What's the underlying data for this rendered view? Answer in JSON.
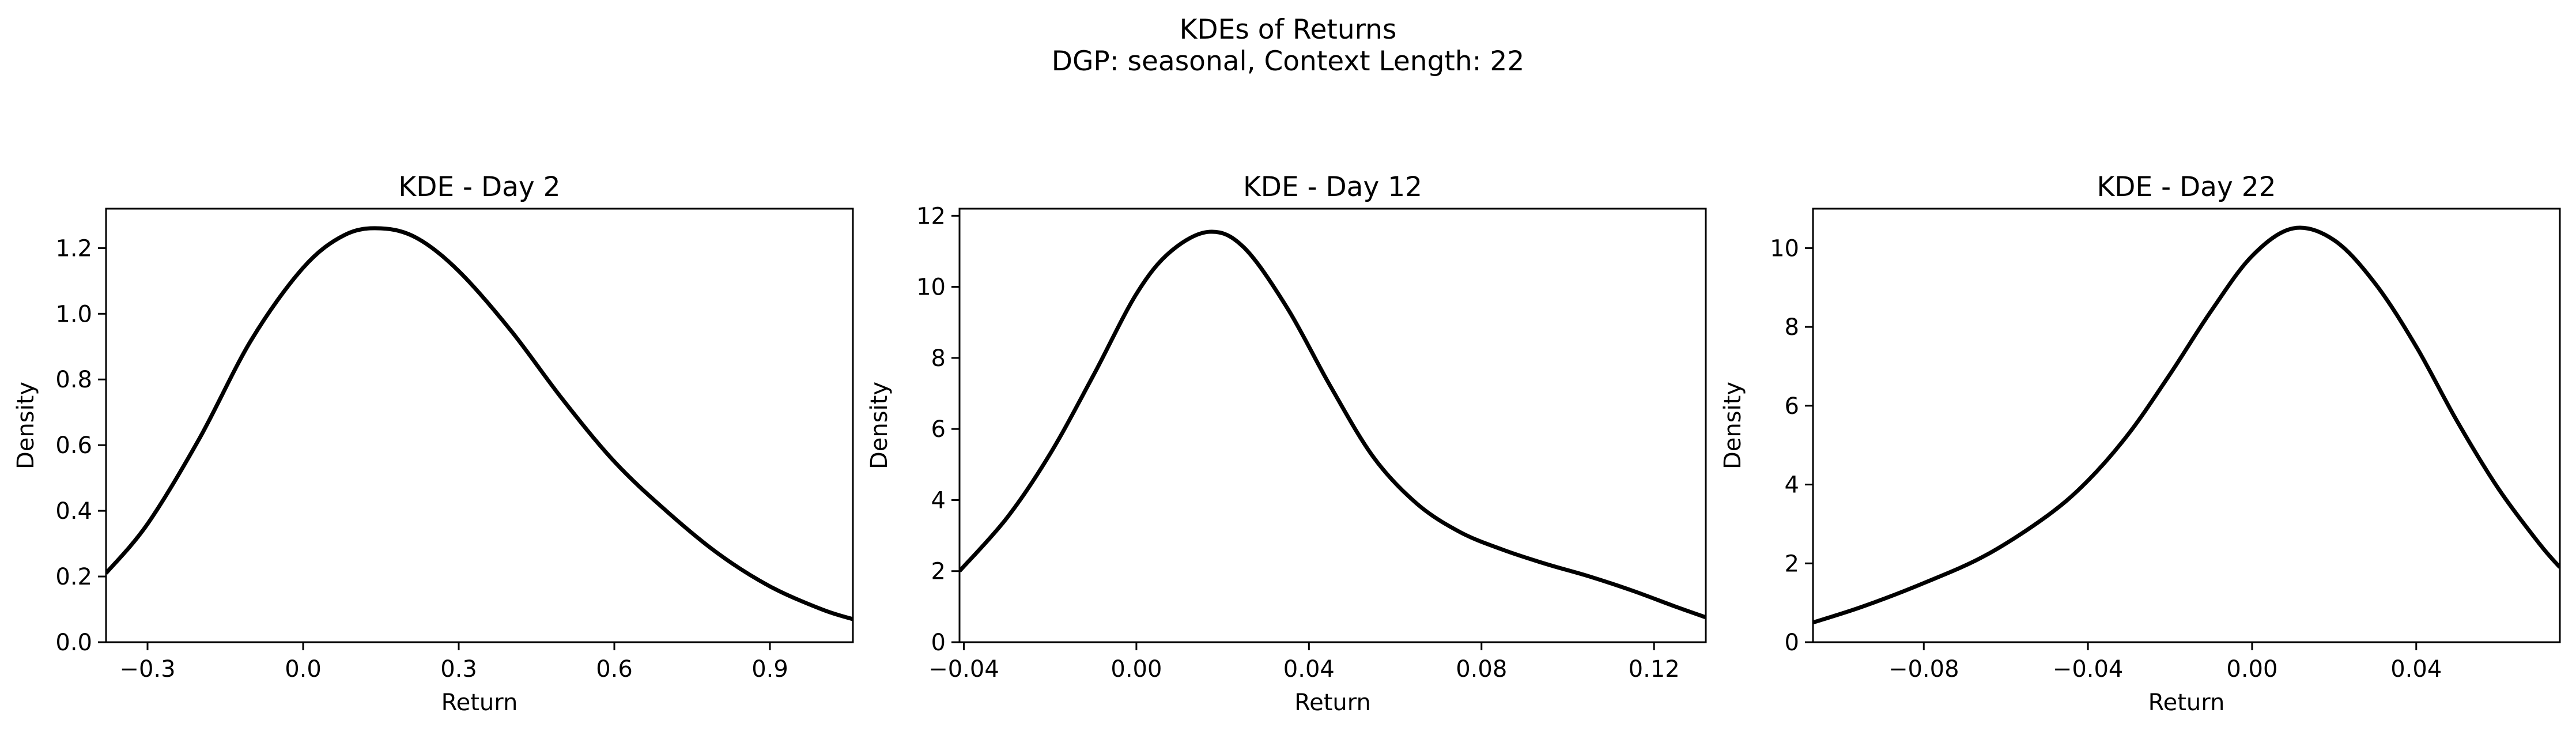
{
  "figure": {
    "title_line1": "KDEs of Returns",
    "title_line2": "DGP: seasonal, Context Length: 22"
  },
  "chart_data": [
    {
      "type": "line",
      "title": "KDE - Day 2",
      "xlabel": "Return",
      "ylabel": "Density",
      "xlim": [
        -0.38,
        1.06
      ],
      "ylim": [
        0.0,
        1.32
      ],
      "xticks": [
        -0.3,
        0.0,
        0.3,
        0.6,
        0.9
      ],
      "xtick_labels": [
        "−0.3",
        "0.0",
        "0.3",
        "0.6",
        "0.9"
      ],
      "yticks": [
        0.0,
        0.2,
        0.4,
        0.6,
        0.8,
        1.0,
        1.2
      ],
      "ytick_labels": [
        "0.0",
        "0.2",
        "0.4",
        "0.6",
        "0.8",
        "1.0",
        "1.2"
      ],
      "grid": false,
      "line_color": "#000000",
      "series": [
        {
          "x": [
            -0.38,
            -0.3,
            -0.2,
            -0.1,
            0.0,
            0.08,
            0.15,
            0.22,
            0.3,
            0.4,
            0.5,
            0.6,
            0.7,
            0.8,
            0.9,
            1.0,
            1.06
          ],
          "y": [
            0.21,
            0.36,
            0.62,
            0.92,
            1.14,
            1.24,
            1.26,
            1.23,
            1.13,
            0.95,
            0.74,
            0.55,
            0.4,
            0.27,
            0.17,
            0.1,
            0.07
          ]
        }
      ]
    },
    {
      "type": "line",
      "title": "KDE - Day 12",
      "xlabel": "Return",
      "ylabel": "Density",
      "xlim": [
        -0.041,
        0.132
      ],
      "ylim": [
        0.0,
        12.2
      ],
      "xticks": [
        -0.04,
        0.0,
        0.04,
        0.08,
        0.12
      ],
      "xtick_labels": [
        "−0.04",
        "0.00",
        "0.04",
        "0.08",
        "0.12"
      ],
      "yticks": [
        0,
        2,
        4,
        6,
        8,
        10,
        12
      ],
      "ytick_labels": [
        "0",
        "2",
        "4",
        "6",
        "8",
        "10",
        "12"
      ],
      "grid": false,
      "line_color": "#000000",
      "series": [
        {
          "x": [
            -0.041,
            -0.03,
            -0.02,
            -0.01,
            0.0,
            0.008,
            0.017,
            0.025,
            0.035,
            0.045,
            0.055,
            0.065,
            0.075,
            0.085,
            0.095,
            0.105,
            0.115,
            0.125,
            0.132
          ],
          "y": [
            2.0,
            3.5,
            5.3,
            7.5,
            9.8,
            11.0,
            11.55,
            11.1,
            9.4,
            7.2,
            5.2,
            3.9,
            3.1,
            2.6,
            2.2,
            1.85,
            1.45,
            1.0,
            0.7
          ]
        }
      ]
    },
    {
      "type": "line",
      "title": "KDE - Day 22",
      "xlabel": "Return",
      "ylabel": "Density",
      "xlim": [
        -0.107,
        0.075
      ],
      "ylim": [
        0.0,
        11.0
      ],
      "xticks": [
        -0.08,
        -0.04,
        0.0,
        0.04
      ],
      "xtick_labels": [
        "−0.08",
        "−0.04",
        "0.00",
        "0.04"
      ],
      "yticks": [
        0,
        2,
        4,
        6,
        8,
        10
      ],
      "ytick_labels": [
        "0",
        "2",
        "4",
        "6",
        "8",
        "10"
      ],
      "grid": false,
      "line_color": "#000000",
      "series": [
        {
          "x": [
            -0.107,
            -0.095,
            -0.08,
            -0.065,
            -0.05,
            -0.04,
            -0.03,
            -0.02,
            -0.01,
            0.0,
            0.01,
            0.02,
            0.03,
            0.04,
            0.05,
            0.06,
            0.07,
            0.075
          ],
          "y": [
            0.5,
            0.9,
            1.5,
            2.2,
            3.2,
            4.1,
            5.3,
            6.8,
            8.4,
            9.8,
            10.5,
            10.2,
            9.1,
            7.5,
            5.6,
            3.9,
            2.5,
            1.9
          ]
        }
      ]
    }
  ]
}
